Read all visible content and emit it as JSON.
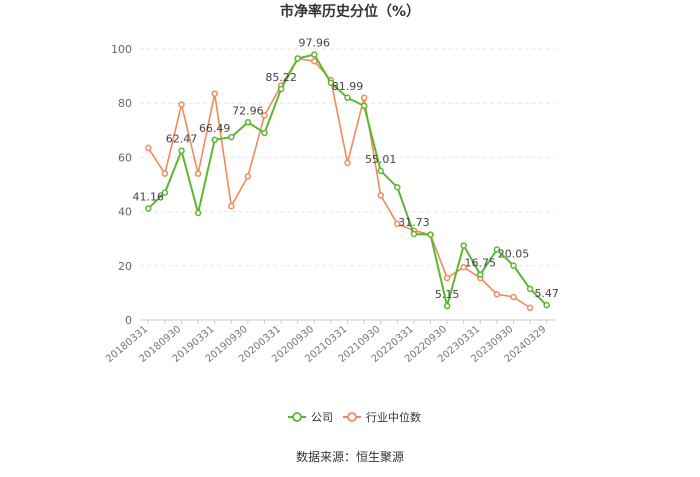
{
  "chart_data": {
    "type": "line",
    "title": "市净率历史分位（%）",
    "xlabel": "",
    "ylabel": "",
    "ylim": [
      0,
      100
    ],
    "yticks": [
      0,
      20,
      40,
      60,
      80,
      100
    ],
    "grid": true,
    "legend_position": "bottom",
    "x": [
      "20180331",
      "20180630",
      "20180930",
      "20181231",
      "20190331",
      "20190630",
      "20190930",
      "20191231",
      "20200331",
      "20200630",
      "20200930",
      "20201231",
      "20210331",
      "20210630",
      "20210930",
      "20211231",
      "20220331",
      "20220630",
      "20220930",
      "20221231",
      "20230331",
      "20230630",
      "20230930",
      "20231231",
      "20240329"
    ],
    "x_tick_labels": [
      "20180331",
      "20180930",
      "20190331",
      "20190930",
      "20200331",
      "20200930",
      "20210331",
      "20210930",
      "20220331",
      "20220930",
      "20230331",
      "20230930",
      "20240329"
    ],
    "series": [
      {
        "name": "公司",
        "color": "#5ab82e",
        "values": [
          41.16,
          47.0,
          62.47,
          39.5,
          66.49,
          67.5,
          72.96,
          69.0,
          85.22,
          96.5,
          97.96,
          87.5,
          81.99,
          79.0,
          55.01,
          49.0,
          31.73,
          31.5,
          5.15,
          27.5,
          16.75,
          26.0,
          20.05,
          11.5,
          5.47
        ],
        "labels": {
          "0": "41.16",
          "2": "62.47",
          "4": "66.49",
          "6": "72.96",
          "8": "85.22",
          "10": "97.96",
          "12": "81.99",
          "14": "55.01",
          "16": "31.73",
          "18": "5.15",
          "20": "16.75",
          "22": "20.05",
          "24": "5.47"
        }
      },
      {
        "name": "行业中位数",
        "color": "#f08a5d",
        "values": [
          63.5,
          54.0,
          79.5,
          54.0,
          83.5,
          42.0,
          53.0,
          75.5,
          86.5,
          96.5,
          95.5,
          88.5,
          58.0,
          82.0,
          46.0,
          35.5,
          33.0,
          31.5,
          15.5,
          19.5,
          15.5,
          9.5,
          8.5,
          4.5,
          null
        ]
      }
    ]
  },
  "source_text": "数据来源：恒生聚源"
}
